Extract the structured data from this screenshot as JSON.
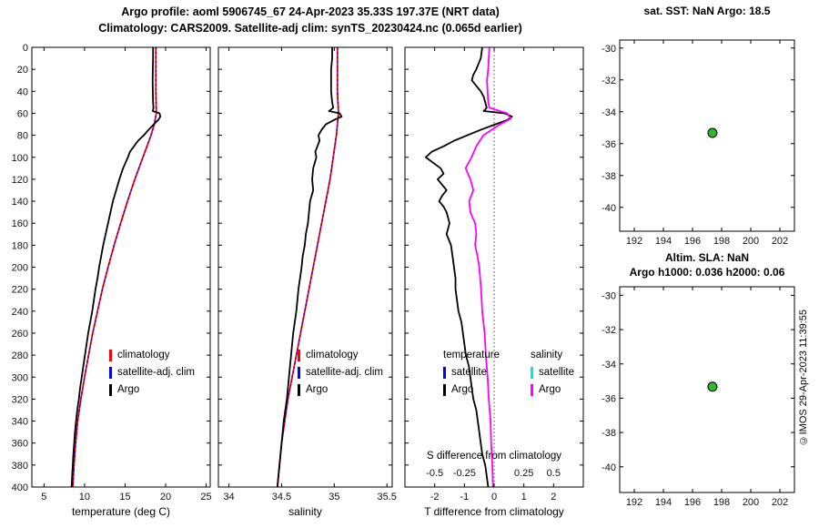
{
  "header": {
    "line1": "Argo profile: aoml 5906745_67 24-Apr-2023 35.33S 197.37E (NRT data)",
    "line2": "Climatology: CARS2009. Satellite-adj clim: synTS_20230424.nc (0.065d earlier)"
  },
  "watermark": "©IMOS 29-Apr-2023 11:39:55",
  "colors": {
    "climatology": "#ff0000",
    "satellite_adj": "#0000ff",
    "argo": "#000000",
    "salinity_satellite": "#00e5ee",
    "salinity_argo": "#ff00ff",
    "marker_fill": "#2db92d",
    "marker_edge": "#000000"
  },
  "chart_data": [
    {
      "id": "temperature",
      "type": "line",
      "xlabel": "temperature (deg C)",
      "xlim": [
        3.5,
        25.5
      ],
      "ylim": [
        0,
        400
      ],
      "y_down": true,
      "xticks": {
        "values": [
          5,
          10,
          15,
          20,
          25
        ],
        "labels": [
          "5",
          "10",
          "15",
          "20",
          "25"
        ]
      },
      "yticks": {
        "values": [
          0,
          20,
          40,
          60,
          80,
          100,
          120,
          140,
          160,
          180,
          200,
          220,
          240,
          260,
          280,
          300,
          320,
          340,
          360,
          380,
          400
        ],
        "labels": [
          "0",
          "20",
          "40",
          "60",
          "80",
          "100",
          "120",
          "140",
          "160",
          "180",
          "200",
          "220",
          "240",
          "260",
          "280",
          "300",
          "320",
          "340",
          "360",
          "380",
          "400"
        ]
      },
      "legend": [
        {
          "label": "climatology",
          "color": "#ff0000"
        },
        {
          "label": "satellite-adj. clim",
          "color": "#0000ff"
        },
        {
          "label": "Argo",
          "color": "#000000"
        }
      ],
      "series": [
        {
          "name": "climatology",
          "color": "#ff0000",
          "width": 1.8,
          "depth": [
            0,
            20,
            40,
            60,
            70,
            80,
            90,
            100,
            120,
            140,
            160,
            180,
            200,
            220,
            240,
            260,
            280,
            300,
            320,
            340,
            360,
            380,
            400
          ],
          "x": [
            18.8,
            18.8,
            18.8,
            18.85,
            18.6,
            18.2,
            17.7,
            17.2,
            16.2,
            15.3,
            14.45,
            13.65,
            12.9,
            12.2,
            11.6,
            11.0,
            10.5,
            10.0,
            9.55,
            9.15,
            8.9,
            8.7,
            8.55
          ]
        },
        {
          "name": "satellite-adj. clim",
          "color": "#0000ff",
          "width": 1.3,
          "dash": "2 3",
          "depth": [
            0,
            20,
            40,
            60,
            70,
            80,
            90,
            100,
            120,
            140,
            160,
            180,
            200,
            220,
            240,
            260,
            280,
            300,
            320,
            340,
            360,
            380,
            400
          ],
          "x": [
            18.8,
            18.8,
            18.8,
            18.85,
            18.6,
            18.2,
            17.7,
            17.2,
            16.2,
            15.3,
            14.45,
            13.65,
            12.9,
            12.2,
            11.6,
            11.0,
            10.5,
            10.0,
            9.55,
            9.15,
            8.9,
            8.7,
            8.55
          ]
        },
        {
          "name": "Argo",
          "color": "#000000",
          "width": 1.8,
          "depth": [
            0,
            10,
            20,
            30,
            40,
            50,
            55,
            58,
            60,
            63,
            66,
            70,
            75,
            80,
            85,
            90,
            95,
            100,
            110,
            120,
            130,
            140,
            150,
            160,
            170,
            180,
            190,
            200,
            210,
            220,
            230,
            240,
            250,
            260,
            270,
            280,
            290,
            300,
            310,
            320,
            330,
            340,
            350,
            360,
            370,
            380,
            390,
            400
          ],
          "x": [
            18.45,
            18.45,
            18.42,
            18.4,
            18.42,
            18.45,
            18.5,
            18.42,
            19.25,
            19.35,
            19.1,
            18.55,
            17.9,
            17.3,
            16.6,
            16.1,
            15.6,
            15.35,
            14.75,
            14.3,
            13.9,
            13.5,
            13.2,
            12.9,
            12.6,
            12.3,
            12.05,
            11.8,
            11.6,
            11.35,
            11.15,
            10.95,
            10.7,
            10.45,
            10.25,
            10.05,
            9.85,
            9.65,
            9.45,
            9.3,
            9.1,
            8.95,
            8.82,
            8.72,
            8.62,
            8.55,
            8.47,
            8.4
          ]
        }
      ]
    },
    {
      "id": "salinity",
      "type": "line",
      "xlabel": "salinity",
      "xlim": [
        33.9,
        35.55
      ],
      "ylim": [
        0,
        400
      ],
      "y_down": true,
      "xticks": {
        "values": [
          34,
          34.5,
          35,
          35.5
        ],
        "labels": [
          "34",
          "34.5",
          "35",
          "35.5"
        ]
      },
      "yticks": {
        "values": [
          0,
          20,
          40,
          60,
          80,
          100,
          120,
          140,
          160,
          180,
          200,
          220,
          240,
          260,
          280,
          300,
          320,
          340,
          360,
          380,
          400
        ],
        "labels": null
      },
      "legend": [
        {
          "label": "climatology",
          "color": "#ff0000"
        },
        {
          "label": "satellite-adj. clim",
          "color": "#0000ff"
        },
        {
          "label": "Argo",
          "color": "#000000"
        }
      ],
      "series": [
        {
          "name": "climatology",
          "color": "#ff0000",
          "width": 1.8,
          "depth": [
            0,
            20,
            40,
            60,
            80,
            100,
            120,
            140,
            160,
            180,
            200,
            220,
            240,
            260,
            280,
            300,
            320,
            340,
            360,
            380,
            400
          ],
          "x": [
            35.03,
            35.03,
            35.03,
            35.04,
            35.02,
            34.99,
            34.96,
            34.92,
            34.88,
            34.84,
            34.8,
            34.76,
            34.72,
            34.68,
            34.64,
            34.6,
            34.56,
            34.53,
            34.5,
            34.48,
            34.46
          ]
        },
        {
          "name": "satellite-adj. clim",
          "color": "#0000ff",
          "width": 1.3,
          "dash": "2 3",
          "depth": [
            0,
            20,
            40,
            60,
            80,
            100,
            120,
            140,
            160,
            180,
            200,
            220,
            240,
            260,
            280,
            300,
            320,
            340,
            360,
            380,
            400
          ],
          "x": [
            35.03,
            35.03,
            35.03,
            35.04,
            35.02,
            34.99,
            34.96,
            34.92,
            34.88,
            34.84,
            34.8,
            34.76,
            34.72,
            34.68,
            34.64,
            34.6,
            34.56,
            34.53,
            34.5,
            34.48,
            34.46
          ]
        },
        {
          "name": "Argo",
          "color": "#000000",
          "width": 1.8,
          "depth": [
            0,
            10,
            20,
            30,
            40,
            50,
            55,
            58,
            60,
            63,
            66,
            70,
            75,
            80,
            85,
            90,
            95,
            100,
            110,
            120,
            130,
            140,
            150,
            160,
            170,
            180,
            190,
            200,
            220,
            240,
            260,
            280,
            300,
            320,
            340,
            360,
            380,
            400
          ],
          "x": [
            34.98,
            34.98,
            34.97,
            34.97,
            34.97,
            34.98,
            34.99,
            34.95,
            35.05,
            35.07,
            35.0,
            34.92,
            34.88,
            34.85,
            34.86,
            34.84,
            34.82,
            34.83,
            34.8,
            34.79,
            34.8,
            34.77,
            34.76,
            34.75,
            34.73,
            34.72,
            34.7,
            34.69,
            34.66,
            34.64,
            34.61,
            34.59,
            34.57,
            34.55,
            34.52,
            34.5,
            34.48,
            34.46
          ]
        }
      ]
    },
    {
      "id": "difference",
      "type": "line",
      "xlabel": "T difference from climatology",
      "inner_label": "S difference from climatology",
      "xlim": [
        -3,
        3
      ],
      "ylim": [
        0,
        400
      ],
      "y_down": true,
      "zero_line": true,
      "xticks": {
        "values": [
          -2,
          -1,
          0,
          1,
          2
        ],
        "labels": [
          "-2",
          "-1",
          "0",
          "1",
          "2"
        ]
      },
      "yticks": {
        "values": [
          0,
          20,
          40,
          60,
          80,
          100,
          120,
          140,
          160,
          180,
          200,
          220,
          240,
          260,
          280,
          300,
          320,
          340,
          360,
          380,
          400
        ],
        "labels": null
      },
      "secondary_xticks": {
        "values": [
          -2,
          -1,
          1,
          2
        ],
        "labels": [
          "-0.5",
          "-0.25",
          "0.25",
          "0.5"
        ]
      },
      "legend_groups": [
        {
          "title": "temperature",
          "items": [
            {
              "label": "satellite",
              "color": "#0000ff"
            },
            {
              "label": "Argo",
              "color": "#000000"
            }
          ]
        },
        {
          "title": "salinity",
          "items": [
            {
              "label": "satellite",
              "color": "#00e5ee"
            },
            {
              "label": "Argo",
              "color": "#ff00ff"
            }
          ]
        }
      ],
      "series": [
        {
          "name": "T diff Argo-clim",
          "color": "#000000",
          "width": 1.8,
          "depth": [
            0,
            10,
            20,
            25,
            30,
            35,
            40,
            45,
            50,
            55,
            58,
            60,
            63,
            66,
            70,
            75,
            80,
            85,
            90,
            95,
            100,
            105,
            110,
            115,
            120,
            125,
            130,
            135,
            140,
            145,
            150,
            160,
            170,
            180,
            190,
            200,
            210,
            220,
            230,
            240,
            250,
            260,
            270,
            280,
            290,
            300,
            310,
            320,
            330,
            340,
            350,
            360,
            370,
            380,
            390,
            400
          ],
          "x": [
            -0.4,
            -0.45,
            -0.6,
            -0.7,
            -0.75,
            -0.6,
            -0.45,
            -0.35,
            -0.3,
            -0.25,
            -0.35,
            0.35,
            0.6,
            0.45,
            0.05,
            -0.45,
            -0.9,
            -1.35,
            -1.7,
            -2.1,
            -2.3,
            -2.05,
            -1.8,
            -1.7,
            -1.9,
            -1.75,
            -1.6,
            -1.75,
            -1.85,
            -1.7,
            -1.6,
            -1.5,
            -1.6,
            -1.45,
            -1.4,
            -1.35,
            -1.3,
            -1.3,
            -1.25,
            -1.2,
            -1.1,
            -1.05,
            -1.0,
            -0.95,
            -0.85,
            -0.8,
            -0.75,
            -0.7,
            -0.6,
            -0.55,
            -0.5,
            -0.45,
            -0.4,
            -0.3,
            -0.25,
            -0.2
          ]
        },
        {
          "name": "S diff Argo-clim (secondary axis)",
          "color": "#ff00ff",
          "width": 1.8,
          "scale": 4,
          "depth": [
            0,
            10,
            20,
            30,
            40,
            50,
            55,
            60,
            65,
            70,
            80,
            90,
            100,
            110,
            120,
            130,
            140,
            150,
            160,
            170,
            180,
            190,
            200,
            220,
            240,
            260,
            280,
            300,
            320,
            340,
            360,
            380,
            400
          ],
          "x": [
            -0.04,
            -0.045,
            -0.05,
            -0.06,
            -0.055,
            -0.05,
            -0.04,
            0.11,
            0.14,
            0.05,
            -0.09,
            -0.15,
            -0.19,
            -0.24,
            -0.2,
            -0.175,
            -0.21,
            -0.2,
            -0.16,
            -0.15,
            -0.16,
            -0.14,
            -0.125,
            -0.11,
            -0.1,
            -0.08,
            -0.07,
            -0.055,
            -0.045,
            -0.03,
            -0.025,
            -0.015,
            -0.01
          ]
        }
      ]
    },
    {
      "id": "map_sst",
      "type": "scatter",
      "title": "sat. SST: NaN Argo: 18.5",
      "xlim": [
        191,
        203
      ],
      "ylim": [
        -41.5,
        -29.5
      ],
      "y_down": false,
      "xticks": {
        "values": [
          192,
          194,
          196,
          198,
          200,
          202
        ],
        "labels": [
          "192",
          "194",
          "196",
          "198",
          "200",
          "202"
        ]
      },
      "yticks": {
        "values": [
          -40,
          -38,
          -36,
          -34,
          -32,
          -30
        ],
        "labels": [
          "-40",
          "-38",
          "-36",
          "-34",
          "-32",
          "-30"
        ]
      },
      "marker": {
        "color": "#2db92d",
        "edge": "#000000",
        "r": 5
      },
      "points": [
        {
          "x": 197.37,
          "y": -35.33
        }
      ]
    },
    {
      "id": "map_sla",
      "type": "scatter",
      "title1": "Altim. SLA: NaN",
      "title2": "Argo h1000: 0.036 h2000: 0.06",
      "xlim": [
        191,
        203
      ],
      "ylim": [
        -41.5,
        -29.5
      ],
      "y_down": false,
      "xticks": {
        "values": [
          192,
          194,
          196,
          198,
          200,
          202
        ],
        "labels": [
          "192",
          "194",
          "196",
          "198",
          "200",
          "202"
        ]
      },
      "yticks": {
        "values": [
          -40,
          -38,
          -36,
          -34,
          -32,
          -30
        ],
        "labels": [
          "-40",
          "-38",
          "-36",
          "-34",
          "-32",
          "-30"
        ]
      },
      "marker": {
        "color": "#2db92d",
        "edge": "#000000",
        "r": 5
      },
      "points": [
        {
          "x": 197.37,
          "y": -35.33
        }
      ]
    }
  ]
}
